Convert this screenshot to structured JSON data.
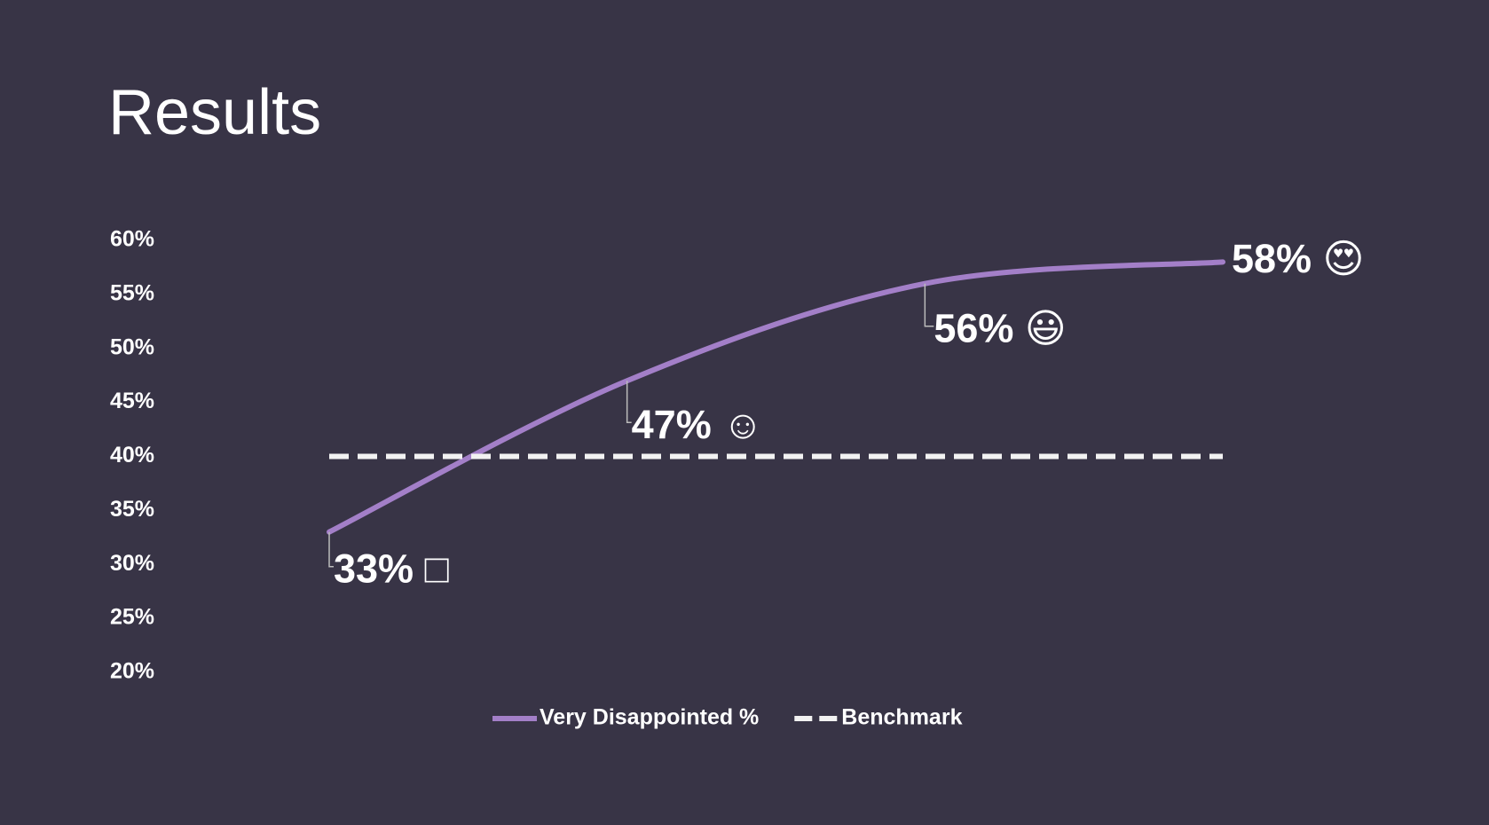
{
  "chart_data": {
    "type": "line",
    "title": "Results",
    "categories": [
      null,
      null,
      null,
      null
    ],
    "series": [
      {
        "name": "Very Disappointed %",
        "color": "#a37fc8",
        "values": [
          33,
          47,
          56,
          58
        ],
        "value_labels": [
          "33% □",
          "47% ☺",
          "56% 😃",
          "58% 😍"
        ],
        "smooth": true
      },
      {
        "name": "Benchmark",
        "color": "#f2f2f2",
        "values": [
          40,
          40,
          40,
          40
        ],
        "dashed": true
      }
    ],
    "ylim": [
      20,
      60
    ],
    "yticks": [
      {
        "value": 20,
        "label": "20%"
      },
      {
        "value": 25,
        "label": "25%"
      },
      {
        "value": 30,
        "label": "30%"
      },
      {
        "value": 35,
        "label": "35%"
      },
      {
        "value": 40,
        "label": "40%"
      },
      {
        "value": 45,
        "label": "45%"
      },
      {
        "value": 50,
        "label": "50%"
      },
      {
        "value": 55,
        "label": "55%"
      },
      {
        "value": 60,
        "label": "60%"
      }
    ],
    "grid": false
  }
}
